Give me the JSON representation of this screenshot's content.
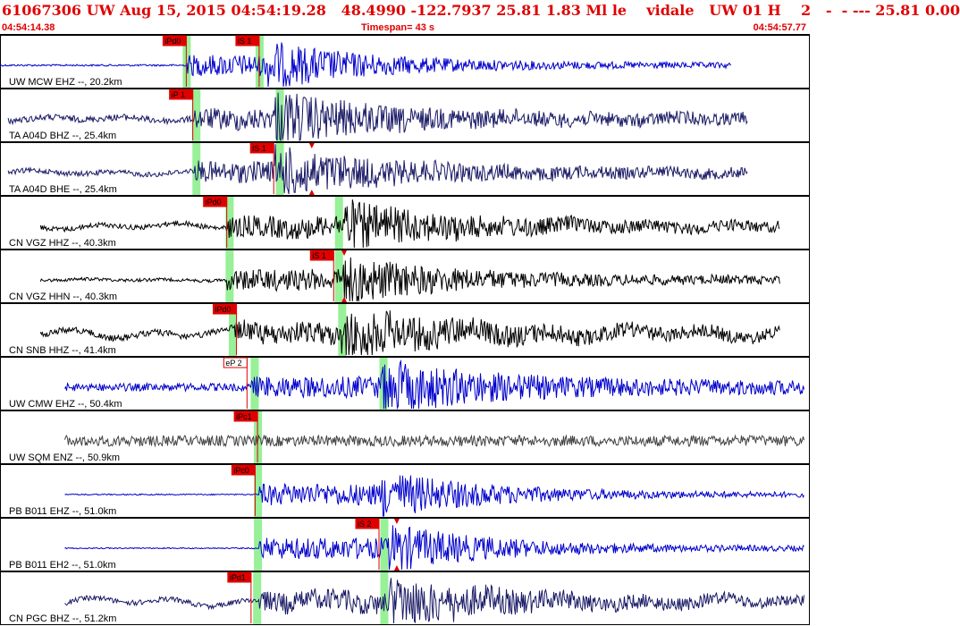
{
  "header": {
    "title": "61067306 UW Aug 15, 2015 04:54:19.28   48.4990 -122.7937 25.81 1.83 Ml le    vidale   UW 01 H    2   -  - --- 25.81 0.00",
    "start_time": "04:54:14.38",
    "timespan": "Timespan=  43 s",
    "end_time": "04:54:57.77"
  },
  "colors": {
    "header": "#e00000",
    "pick": "#e00000",
    "window": "#98f098",
    "blue": "#0000cc",
    "navy": "#1a1a66",
    "black": "#000000",
    "gray": "#444444"
  },
  "channels": [
    {
      "label": "UW MCW EHZ --, 20.2km",
      "color": "blue",
      "start": 0.0,
      "end": 0.91,
      "style": "impulse",
      "amp": 0.02,
      "arrival": 0.23,
      "sArrival": 0.33,
      "lowfreq": 0,
      "picks": [
        {
          "text": "iPd0",
          "at": 0.23,
          "style": "solid"
        },
        {
          "text": "iS 1",
          "at": 0.32,
          "style": "solid"
        }
      ],
      "windows": [
        {
          "at": 0.23
        },
        {
          "at": 0.32
        }
      ]
    },
    {
      "label": "TA A04D BHZ --, 25.4km",
      "color": "navy",
      "start": 0.01,
      "end": 0.93,
      "style": "noisy",
      "amp": 0.1,
      "arrival": 0.24,
      "sArrival": 0.34,
      "lowfreq": 0.25,
      "picks": [
        {
          "text": "iP 1",
          "at": 0.238,
          "style": "solid"
        }
      ],
      "windows": [
        {
          "at": 0.242
        },
        {
          "at": 0.345
        }
      ]
    },
    {
      "label": "TA A04D BHE --, 25.4km",
      "color": "navy",
      "start": 0.01,
      "end": 0.93,
      "style": "noisy",
      "amp": 0.08,
      "arrival": 0.24,
      "sArrival": 0.34,
      "lowfreq": 0.25,
      "picks": [
        {
          "text": "iS 1",
          "at": 0.338,
          "style": "solid"
        }
      ],
      "windows": [
        {
          "at": 0.242
        },
        {
          "at": 0.345
        }
      ],
      "markers": [
        {
          "at": 0.385
        }
      ]
    },
    {
      "label": "CN VGZ HHZ --, 40.3km",
      "color": "black",
      "start": 0.05,
      "end": 0.97,
      "style": "noisy",
      "amp": 0.08,
      "arrival": 0.28,
      "sArrival": 0.42,
      "lowfreq": 0.35,
      "picks": [
        {
          "text": "iPd0",
          "at": 0.28,
          "style": "solid"
        }
      ],
      "windows": [
        {
          "at": 0.283
        },
        {
          "at": 0.418
        }
      ]
    },
    {
      "label": "CN VGZ HHN --, 40.3km",
      "color": "black",
      "start": 0.05,
      "end": 0.97,
      "style": "noisy",
      "amp": 0.05,
      "arrival": 0.28,
      "sArrival": 0.42,
      "lowfreq": 0.1,
      "picks": [
        {
          "text": "iS 1",
          "at": 0.412,
          "style": "solid"
        }
      ],
      "windows": [
        {
          "at": 0.283
        },
        {
          "at": 0.418
        }
      ],
      "markers": [
        {
          "at": 0.425
        }
      ]
    },
    {
      "label": "CN SNB HHZ --, 41.4km",
      "color": "black",
      "start": 0.05,
      "end": 0.97,
      "style": "noisy",
      "amp": 0.1,
      "arrival": 0.29,
      "sArrival": 0.42,
      "lowfreq": 0.6,
      "picks": [
        {
          "text": "iPd0",
          "at": 0.292,
          "style": "solid"
        }
      ],
      "windows": [
        {
          "at": 0.287
        },
        {
          "at": 0.422
        }
      ]
    },
    {
      "label": "UW CMW EHZ --, 50.4km",
      "color": "blue",
      "start": 0.08,
      "end": 1.0,
      "style": "noisy",
      "amp": 0.12,
      "arrival": 0.31,
      "sArrival": 0.47,
      "lowfreq": 0,
      "picks": [
        {
          "text": "eP 2",
          "at": 0.305,
          "style": "outline"
        }
      ],
      "windows": [
        {
          "at": 0.314
        },
        {
          "at": 0.473
        }
      ]
    },
    {
      "label": "UW SQM ENZ --, 50.9km",
      "color": "gray",
      "start": 0.08,
      "end": 1.0,
      "style": "constant",
      "amp": 0.25,
      "arrival": 0.32,
      "sArrival": 0.49,
      "lowfreq": 0,
      "picks": [
        {
          "text": "iPc1",
          "at": 0.318,
          "style": "solid"
        }
      ],
      "windows": [
        {
          "at": 0.318
        }
      ]
    },
    {
      "label": "PB B011 EHZ --, 51.0km",
      "color": "blue",
      "start": 0.08,
      "end": 1.0,
      "style": "impulse",
      "amp": 0.01,
      "arrival": 0.32,
      "sArrival": 0.47,
      "lowfreq": 0,
      "picks": [
        {
          "text": "iPc0",
          "at": 0.315,
          "style": "solid"
        }
      ],
      "windows": [
        {
          "at": 0.318
        }
      ]
    },
    {
      "label": "PB B011 EH2 --, 51.0km",
      "color": "blue",
      "start": 0.08,
      "end": 1.0,
      "style": "impulse",
      "amp": 0.01,
      "arrival": 0.32,
      "sArrival": 0.48,
      "lowfreq": 0,
      "picks": [
        {
          "text": "iS 2",
          "at": 0.468,
          "style": "solid"
        }
      ],
      "windows": [
        {
          "at": 0.318
        },
        {
          "at": 0.474
        }
      ],
      "markers": [
        {
          "at": 0.49
        }
      ]
    },
    {
      "label": "CN PGC BHZ --, 51.2km",
      "color": "navy",
      "start": 0.08,
      "end": 1.0,
      "style": "noisy",
      "amp": 0.08,
      "arrival": 0.32,
      "sArrival": 0.48,
      "lowfreq": 0.5,
      "picks": [
        {
          "text": "iPd1",
          "at": 0.31,
          "style": "solid"
        }
      ],
      "windows": [
        {
          "at": 0.317
        },
        {
          "at": 0.474
        }
      ]
    }
  ]
}
